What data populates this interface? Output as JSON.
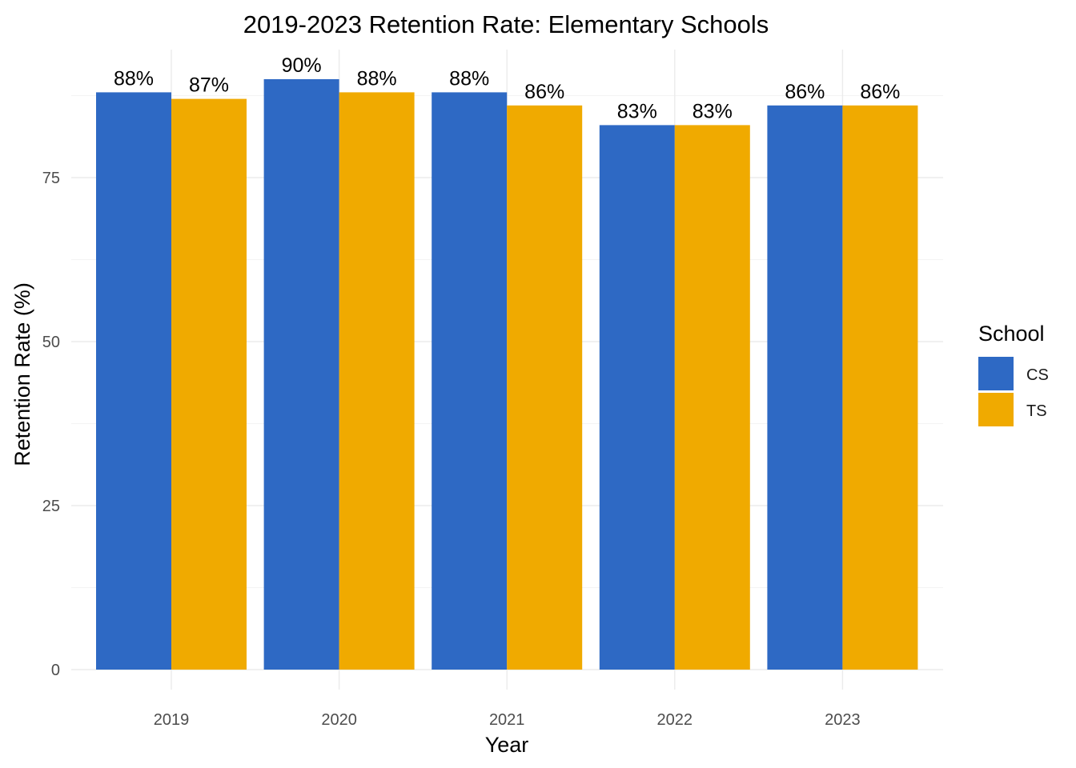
{
  "chart_data": {
    "type": "bar",
    "title": "2019-2023 Retention Rate: Elementary Schools",
    "xlabel": "Year",
    "ylabel": "Retention Rate (%)",
    "categories": [
      "2019",
      "2020",
      "2021",
      "2022",
      "2023"
    ],
    "series": [
      {
        "name": "CS",
        "color": "#2e69c4",
        "values": [
          88,
          90,
          88,
          83,
          86
        ],
        "labels": [
          "88%",
          "90%",
          "88%",
          "83%",
          "86%"
        ]
      },
      {
        "name": "TS",
        "color": "#f0aa00",
        "values": [
          87,
          88,
          86,
          83,
          86
        ],
        "labels": [
          "87%",
          "88%",
          "86%",
          "83%",
          "86%"
        ]
      }
    ],
    "ylim": [
      0,
      95
    ],
    "yticks": [
      0,
      25,
      50,
      75
    ],
    "ytick_labels": [
      "0",
      "25",
      "50",
      "75"
    ],
    "grid": true,
    "legend": {
      "title": "School",
      "position": "right"
    }
  }
}
